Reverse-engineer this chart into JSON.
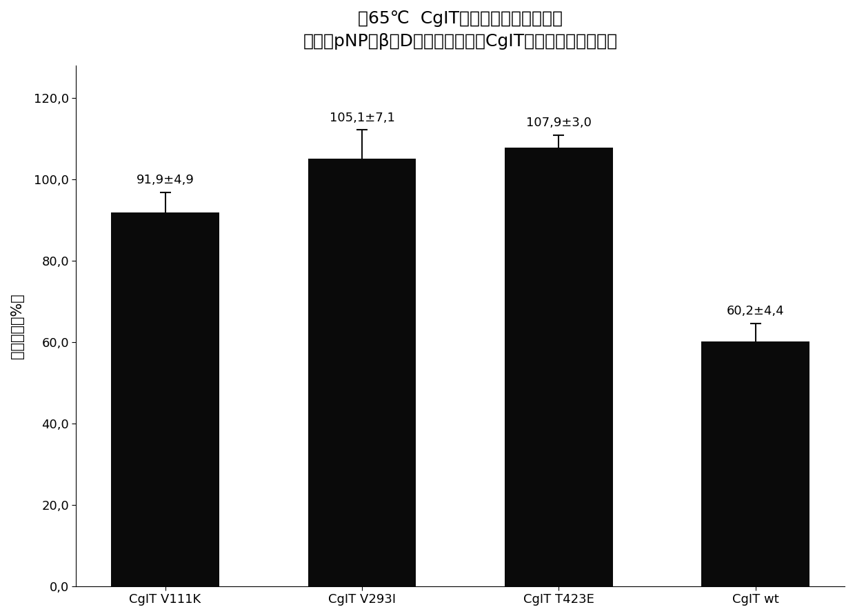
{
  "title_line1": "在65℃  CgIT突变体增加的热稳定性",
  "title_line2": "用底物pNP－β－D－吡喃葡糖苷的CgIT－突变体的相对活性",
  "categories": [
    "CgIT V111K",
    "CgIT V293I",
    "CgIT T423E",
    "CgIT wt"
  ],
  "values": [
    91.9,
    105.1,
    107.9,
    60.2
  ],
  "errors": [
    4.9,
    7.1,
    3.0,
    4.4
  ],
  "labels": [
    "91,9±4,9",
    "105,1±7,1",
    "107,9±3,0",
    "60,2±4,4"
  ],
  "bar_color": "#0a0a0a",
  "error_color": "#0a0a0a",
  "ylabel": "相对活性［%］",
  "yticks": [
    0.0,
    20.0,
    40.0,
    60.0,
    80.0,
    100.0,
    120.0
  ],
  "ytick_labels": [
    "0,0",
    "20,0",
    "40,0",
    "60,0",
    "80,0",
    "100,0",
    "120,0"
  ],
  "ylim": [
    0,
    128
  ],
  "background_color": "#ffffff",
  "bar_width": 0.55,
  "title_fontsize": 18,
  "label_fontsize": 13,
  "tick_fontsize": 13,
  "ylabel_fontsize": 15
}
